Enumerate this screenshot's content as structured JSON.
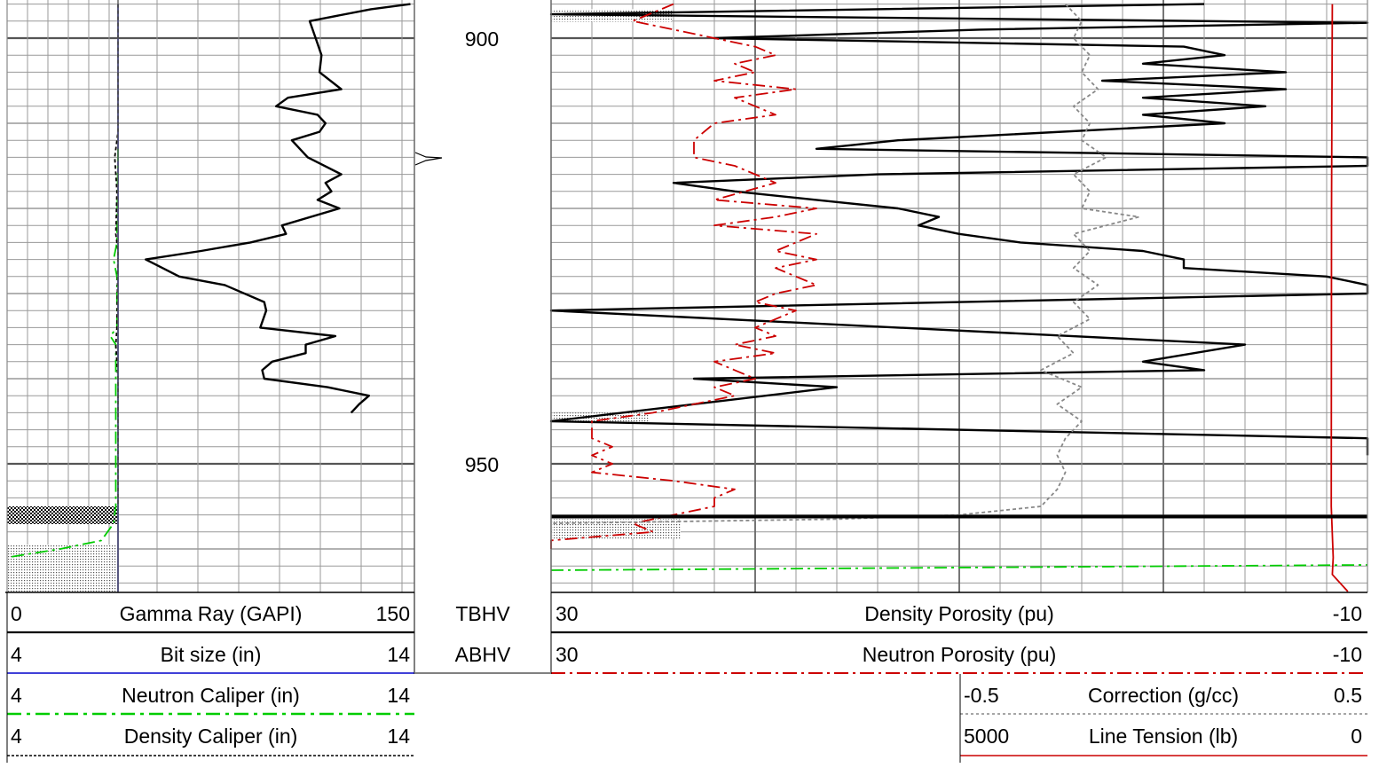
{
  "depth_labels": [
    "900",
    "950"
  ],
  "depth_marker_labels": [
    "TBHV",
    "ABHV"
  ],
  "headers": {
    "gamma": {
      "lo": "0",
      "label": "Gamma Ray (GAPI)",
      "hi": "150",
      "color": "#000000",
      "style": "solid"
    },
    "bit": {
      "lo": "4",
      "label": "Bit size (in)",
      "hi": "14",
      "color": "#0000cc",
      "style": "solid"
    },
    "ncal": {
      "lo": "4",
      "label": "Neutron Caliper (in)",
      "hi": "14",
      "color": "#00cc00",
      "style": "dashdot"
    },
    "dcal": {
      "lo": "4",
      "label": "Density Caliper (in)",
      "hi": "14",
      "color": "#000000",
      "style": "dashed"
    },
    "dphi": {
      "lo": "30",
      "label": "Density Porosity (pu)",
      "hi": "-10",
      "color": "#000000",
      "style": "solid"
    },
    "nphi": {
      "lo": "30",
      "label": "Neutron Porosity (pu)",
      "hi": "-10",
      "color": "#cc0000",
      "style": "dashdot"
    },
    "corr": {
      "lo": "-0.5",
      "label": "Correction (g/cc)",
      "hi": "0.5",
      "color": "#888888",
      "style": "dashed"
    },
    "tens": {
      "lo": "5000",
      "label": "Line Tension (lb)",
      "hi": "0",
      "color": "#cc0000",
      "style": "solid"
    }
  },
  "chart_data": {
    "type": "line",
    "depth_range": [
      896,
      965
    ],
    "tracks": [
      {
        "name": "track1",
        "series": [
          {
            "name": "Gamma Ray (GAPI)",
            "scale": [
              0,
              150
            ],
            "color": "#000000",
            "points": [
              [
                896,
                148
              ],
              [
                896.6,
                128
              ],
              [
                898,
                97
              ],
              [
                900,
                100
              ],
              [
                902,
                103
              ],
              [
                904,
                102
              ],
              [
                906,
                113
              ],
              [
                907,
                86
              ],
              [
                908,
                80
              ],
              [
                909,
                101
              ],
              [
                910,
                105
              ],
              [
                911,
                102
              ],
              [
                912,
                88
              ],
              [
                914,
                96
              ],
              [
                916,
                113
              ],
              [
                917,
                105
              ],
              [
                918,
                108
              ],
              [
                919,
                101
              ],
              [
                920,
                112
              ],
              [
                922,
                83
              ],
              [
                923,
                85
              ],
              [
                924,
                67
              ],
              [
                925,
                42
              ],
              [
                926,
                14
              ],
              [
                928,
                31
              ],
              [
                929,
                54
              ],
              [
                931,
                74
              ],
              [
                932,
                75
              ],
              [
                934,
                72
              ],
              [
                935,
                110
              ],
              [
                936,
                95
              ],
              [
                937,
                95
              ],
              [
                938,
                78
              ],
              [
                939,
                73
              ],
              [
                940,
                74
              ],
              [
                941,
                106
              ],
              [
                942,
                127
              ],
              [
                943,
                122
              ],
              [
                944,
                118
              ]
            ]
          },
          {
            "name": "Bit size (in)",
            "scale": [
              4,
              14
            ],
            "color": "#0000cc",
            "points": [
              [
                896,
                14
              ],
              [
                965,
                14
              ]
            ]
          },
          {
            "name": "Neutron Caliper (in)",
            "scale": [
              4,
              14
            ],
            "color": "#00cc00",
            "points": [
              [
                913,
                14
              ],
              [
                924,
                13.9
              ],
              [
                926,
                13.6
              ],
              [
                928,
                13.9
              ],
              [
                934,
                13.9
              ],
              [
                935,
                13.3
              ],
              [
                936,
                13.8
              ],
              [
                946,
                13.8
              ],
              [
                955,
                13.8
              ],
              [
                957,
                13.6
              ],
              [
                959,
                12.5
              ],
              [
                960,
                8.8
              ],
              [
                961,
                4
              ]
            ]
          },
          {
            "name": "Density Caliper (in)",
            "scale": [
              4,
              14
            ],
            "color": "#000000",
            "points": [
              [
                896,
                14
              ],
              [
                911,
                14
              ],
              [
                914,
                13.7
              ],
              [
                918,
                13.9
              ],
              [
                923,
                13.8
              ],
              [
                925,
                14
              ],
              [
                934,
                13.9
              ],
              [
                936,
                13.8
              ],
              [
                940,
                14
              ],
              [
                955,
                14
              ]
            ]
          }
        ]
      },
      {
        "name": "track3",
        "series": [
          {
            "name": "Density Porosity (pu)",
            "scale": [
              30,
              -10
            ],
            "color": "#000000",
            "points": [
              [
                896,
                -2
              ],
              [
                897.2,
                30
              ],
              [
                898.2,
                -10
              ],
              [
                899,
                9
              ],
              [
                900,
                22
              ],
              [
                901,
                -1
              ],
              [
                902,
                -3
              ],
              [
                903,
                1
              ],
              [
                904,
                -6
              ],
              [
                905,
                3
              ],
              [
                906,
                -6
              ],
              [
                907,
                1
              ],
              [
                908,
                -5
              ],
              [
                909,
                1
              ],
              [
                910,
                -3
              ],
              [
                912,
                13
              ],
              [
                913,
                17
              ],
              [
                914,
                -10
              ],
              [
                915,
                -10
              ],
              [
                916,
                14
              ],
              [
                917,
                24
              ],
              [
                918,
                21
              ],
              [
                919,
                17
              ],
              [
                920,
                13
              ],
              [
                921,
                11
              ],
              [
                922,
                12
              ],
              [
                923,
                10
              ],
              [
                924,
                7
              ],
              [
                925,
                1
              ],
              [
                926,
                -1
              ],
              [
                927,
                -1
              ],
              [
                928,
                -8
              ],
              [
                929,
                -10
              ],
              [
                930,
                -10
              ],
              [
                932,
                30
              ],
              [
                936,
                -4
              ],
              [
                938,
                1
              ],
              [
                939,
                -2
              ],
              [
                940,
                23
              ],
              [
                941,
                16
              ],
              [
                945,
                30
              ],
              [
                947,
                -10
              ],
              [
                949,
                -10
              ]
            ]
          },
          {
            "name": "Neutron Porosity (pu)",
            "scale": [
              30,
              -10
            ],
            "color": "#cc0000",
            "points": [
              [
                896,
                24
              ],
              [
                898,
                26
              ],
              [
                900,
                22
              ],
              [
                901,
                20
              ],
              [
                902,
                19
              ],
              [
                903,
                21
              ],
              [
                904,
                20
              ],
              [
                905,
                22
              ],
              [
                906,
                18
              ],
              [
                907,
                21
              ],
              [
                909,
                19
              ],
              [
                910,
                22
              ],
              [
                912,
                23
              ],
              [
                914,
                23
              ],
              [
                915,
                21
              ],
              [
                917,
                19
              ],
              [
                919,
                22
              ],
              [
                920,
                17
              ],
              [
                921,
                19
              ],
              [
                922,
                22
              ],
              [
                923,
                17
              ],
              [
                925,
                19
              ],
              [
                926,
                17
              ],
              [
                927,
                19
              ],
              [
                928,
                18
              ],
              [
                929,
                17
              ],
              [
                930,
                19
              ],
              [
                931,
                20
              ],
              [
                932,
                18
              ],
              [
                933,
                19
              ],
              [
                934,
                20
              ],
              [
                935,
                19
              ],
              [
                936,
                21
              ],
              [
                937,
                19
              ],
              [
                938,
                22
              ],
              [
                939,
                21
              ],
              [
                940,
                20
              ],
              [
                941,
                22
              ],
              [
                942,
                21
              ],
              [
                943,
                23
              ],
              [
                944,
                25
              ],
              [
                945,
                28
              ],
              [
                946,
                28
              ],
              [
                947,
                28
              ],
              [
                948,
                27
              ],
              [
                949,
                28
              ],
              [
                950,
                27
              ],
              [
                951,
                28
              ],
              [
                952,
                24
              ],
              [
                953,
                21
              ],
              [
                954,
                22
              ],
              [
                955,
                22
              ],
              [
                956,
                24
              ],
              [
                957,
                26
              ],
              [
                958,
                25
              ],
              [
                959,
                30
              ],
              [
                960,
                30
              ]
            ]
          },
          {
            "name": "Correction (g/cc)",
            "scale": [
              -0.5,
              0.5
            ],
            "color": "#888888",
            "points": [
              [
                896,
                0.13
              ],
              [
                898,
                0.15
              ],
              [
                900,
                0.14
              ],
              [
                902,
                0.16
              ],
              [
                904,
                0.15
              ],
              [
                906,
                0.17
              ],
              [
                908,
                0.14
              ],
              [
                910,
                0.16
              ],
              [
                912,
                0.15
              ],
              [
                914,
                0.18
              ],
              [
                916,
                0.14
              ],
              [
                918,
                0.16
              ],
              [
                920,
                0.15
              ],
              [
                921,
                0.22
              ],
              [
                923,
                0.14
              ],
              [
                925,
                0.16
              ],
              [
                927,
                0.14
              ],
              [
                929,
                0.17
              ],
              [
                931,
                0.14
              ],
              [
                933,
                0.16
              ],
              [
                935,
                0.12
              ],
              [
                937,
                0.14
              ],
              [
                939,
                0.1
              ],
              [
                941,
                0.15
              ],
              [
                943,
                0.12
              ],
              [
                945,
                0.15
              ],
              [
                947,
                0.13
              ],
              [
                949,
                0.12
              ],
              [
                951,
                0.13
              ],
              [
                953,
                0.12
              ],
              [
                955,
                0.1
              ],
              [
                956,
                0
              ],
              [
                956.5,
                -0.15
              ],
              [
                957,
                -0.5
              ]
            ]
          },
          {
            "name": "Line Tension (lb)",
            "scale": [
              5000,
              0
            ],
            "color": "#cc0000",
            "points": [
              [
                896,
                215
              ],
              [
                920,
                220
              ],
              [
                955,
                222
              ],
              [
                961,
                210
              ],
              [
                963,
                215
              ],
              [
                965,
                120
              ]
            ]
          }
        ]
      }
    ]
  }
}
